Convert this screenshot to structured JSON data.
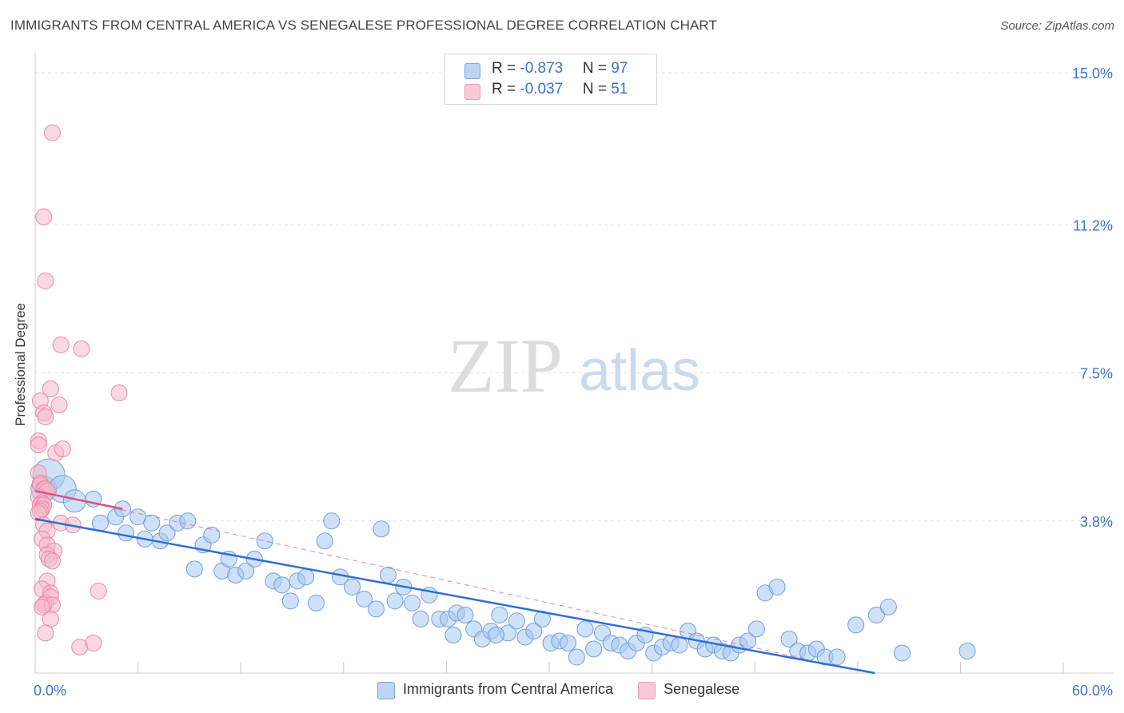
{
  "header": {
    "title": "IMMIGRANTS FROM CENTRAL AMERICA VS SENEGALESE PROFESSIONAL DEGREE CORRELATION CHART",
    "source": "Source: ZipAtlas.com"
  },
  "watermark": {
    "zip": "ZIP",
    "atlas": "atlas"
  },
  "legend_top": [
    {
      "r_label": "R = ",
      "r_value": "-0.873",
      "n_label": "N = ",
      "n_value": "97"
    },
    {
      "r_label": "R = ",
      "r_value": "-0.037",
      "n_label": "N = ",
      "n_value": "51"
    }
  ],
  "legend_bottom": [
    "Immigrants from Central America",
    "Senegalese"
  ],
  "colors": {
    "blue_fill": "#a8c8f0",
    "blue_stroke": "#6f9fdc",
    "blue_line": "#2f6fd1",
    "pink_fill": "#f6b8cb",
    "pink_stroke": "#e88aa8",
    "pink_line": "#e0507e",
    "tick_text": "#3a73c9",
    "grid": "#e2e2e2"
  },
  "chart_data": {
    "type": "scatter",
    "title": "IMMIGRANTS FROM CENTRAL AMERICA VS SENEGALESE PROFESSIONAL DEGREE CORRELATION CHART",
    "xlabel": "",
    "ylabel": "Professional Degree",
    "xlim": [
      0,
      60
    ],
    "ylim": [
      0,
      15.5
    ],
    "x_tick_labels": [
      "0.0%",
      "60.0%"
    ],
    "y_ticks": [
      3.8,
      7.5,
      11.2,
      15.0
    ],
    "y_tick_labels": [
      "3.8%",
      "7.5%",
      "11.2%",
      "15.0%"
    ],
    "grid": true,
    "series": [
      {
        "name": "Immigrants from Central America",
        "R": -0.873,
        "N": 97,
        "trend": {
          "x": [
            0,
            49
          ],
          "y": [
            3.85,
            0.0
          ]
        },
        "points": [
          [
            0.5,
            4.6
          ],
          [
            0.8,
            4.95
          ],
          [
            1.6,
            4.6
          ],
          [
            2.3,
            4.3
          ],
          [
            3.4,
            4.35
          ],
          [
            3.8,
            3.75
          ],
          [
            4.7,
            3.9
          ],
          [
            5.1,
            4.1
          ],
          [
            5.3,
            3.5
          ],
          [
            6.0,
            3.9
          ],
          [
            6.4,
            3.35
          ],
          [
            6.8,
            3.75
          ],
          [
            7.3,
            3.3
          ],
          [
            7.7,
            3.5
          ],
          [
            8.3,
            3.75
          ],
          [
            8.9,
            3.8
          ],
          [
            9.3,
            2.6
          ],
          [
            9.8,
            3.2
          ],
          [
            10.3,
            3.45
          ],
          [
            10.9,
            2.55
          ],
          [
            11.3,
            2.85
          ],
          [
            11.7,
            2.45
          ],
          [
            12.3,
            2.55
          ],
          [
            12.8,
            2.85
          ],
          [
            13.4,
            3.3
          ],
          [
            13.9,
            2.3
          ],
          [
            14.4,
            2.2
          ],
          [
            14.9,
            1.8
          ],
          [
            15.3,
            2.3
          ],
          [
            15.8,
            2.4
          ],
          [
            16.4,
            1.75
          ],
          [
            16.9,
            3.3
          ],
          [
            17.3,
            3.8
          ],
          [
            17.8,
            2.4
          ],
          [
            18.5,
            2.15
          ],
          [
            19.2,
            1.85
          ],
          [
            19.9,
            1.6
          ],
          [
            20.2,
            3.6
          ],
          [
            21.0,
            1.8
          ],
          [
            21.5,
            2.15
          ],
          [
            22.0,
            1.75
          ],
          [
            22.5,
            1.35
          ],
          [
            23.0,
            1.95
          ],
          [
            23.6,
            1.35
          ],
          [
            24.1,
            1.35
          ],
          [
            24.6,
            1.5
          ],
          [
            25.1,
            1.45
          ],
          [
            25.6,
            1.1
          ],
          [
            26.1,
            0.85
          ],
          [
            26.6,
            1.05
          ],
          [
            27.1,
            1.45
          ],
          [
            27.6,
            1.0
          ],
          [
            28.1,
            1.3
          ],
          [
            28.6,
            0.9
          ],
          [
            29.1,
            1.05
          ],
          [
            29.6,
            1.35
          ],
          [
            30.1,
            0.75
          ],
          [
            30.6,
            0.8
          ],
          [
            31.1,
            0.75
          ],
          [
            31.6,
            0.4
          ],
          [
            32.1,
            1.1
          ],
          [
            32.6,
            0.6
          ],
          [
            33.1,
            1.0
          ],
          [
            33.6,
            0.75
          ],
          [
            34.1,
            0.7
          ],
          [
            34.6,
            0.55
          ],
          [
            35.1,
            0.75
          ],
          [
            35.6,
            0.95
          ],
          [
            36.1,
            0.5
          ],
          [
            36.6,
            0.65
          ],
          [
            37.1,
            0.75
          ],
          [
            37.6,
            0.7
          ],
          [
            38.1,
            1.05
          ],
          [
            38.6,
            0.8
          ],
          [
            39.1,
            0.6
          ],
          [
            39.6,
            0.7
          ],
          [
            40.1,
            0.55
          ],
          [
            40.6,
            0.5
          ],
          [
            41.1,
            0.7
          ],
          [
            41.6,
            0.8
          ],
          [
            42.1,
            1.1
          ],
          [
            42.6,
            2.0
          ],
          [
            43.3,
            2.15
          ],
          [
            44.0,
            0.85
          ],
          [
            44.5,
            0.55
          ],
          [
            45.1,
            0.5
          ],
          [
            45.6,
            0.6
          ],
          [
            46.1,
            0.4
          ],
          [
            46.8,
            0.4
          ],
          [
            47.9,
            1.2
          ],
          [
            49.1,
            1.45
          ],
          [
            49.8,
            1.65
          ],
          [
            50.6,
            0.5
          ],
          [
            54.4,
            0.55
          ],
          [
            20.6,
            2.45
          ],
          [
            24.4,
            0.95
          ],
          [
            26.9,
            0.95
          ]
        ]
      },
      {
        "name": "Senegalese",
        "R": -0.037,
        "N": 51,
        "trend": {
          "x": [
            0,
            5.1
          ],
          "y": [
            4.55,
            4.1
          ]
        },
        "trend_dashed": {
          "x": [
            0,
            45
          ],
          "y": [
            4.55,
            0.35
          ]
        },
        "points": [
          [
            1.0,
            13.5
          ],
          [
            0.5,
            11.4
          ],
          [
            0.6,
            9.8
          ],
          [
            1.5,
            8.2
          ],
          [
            2.7,
            8.1
          ],
          [
            0.9,
            7.1
          ],
          [
            4.9,
            7.0
          ],
          [
            0.3,
            6.8
          ],
          [
            1.4,
            6.7
          ],
          [
            0.5,
            6.5
          ],
          [
            0.6,
            6.4
          ],
          [
            0.2,
            5.8
          ],
          [
            0.2,
            5.7
          ],
          [
            1.2,
            5.5
          ],
          [
            1.6,
            5.6
          ],
          [
            0.2,
            5.0
          ],
          [
            0.3,
            4.75
          ],
          [
            0.3,
            4.7
          ],
          [
            0.5,
            4.6
          ],
          [
            0.6,
            4.6
          ],
          [
            0.7,
            4.55
          ],
          [
            0.2,
            4.4
          ],
          [
            0.4,
            4.25
          ],
          [
            0.3,
            4.2
          ],
          [
            0.5,
            4.2
          ],
          [
            0.4,
            4.1
          ],
          [
            0.3,
            4.05
          ],
          [
            0.2,
            4.0
          ],
          [
            1.5,
            3.75
          ],
          [
            2.2,
            3.7
          ],
          [
            0.5,
            3.7
          ],
          [
            0.7,
            3.55
          ],
          [
            0.4,
            3.35
          ],
          [
            0.7,
            3.2
          ],
          [
            1.1,
            3.05
          ],
          [
            0.7,
            2.95
          ],
          [
            0.8,
            2.85
          ],
          [
            1.0,
            2.8
          ],
          [
            0.7,
            2.3
          ],
          [
            0.4,
            2.1
          ],
          [
            0.9,
            2.0
          ],
          [
            0.9,
            1.9
          ],
          [
            0.6,
            1.75
          ],
          [
            0.5,
            1.7
          ],
          [
            1.0,
            1.7
          ],
          [
            0.9,
            1.35
          ],
          [
            0.6,
            1.0
          ],
          [
            2.6,
            0.65
          ],
          [
            3.4,
            0.75
          ],
          [
            3.7,
            2.05
          ],
          [
            0.4,
            1.65
          ]
        ]
      }
    ]
  }
}
